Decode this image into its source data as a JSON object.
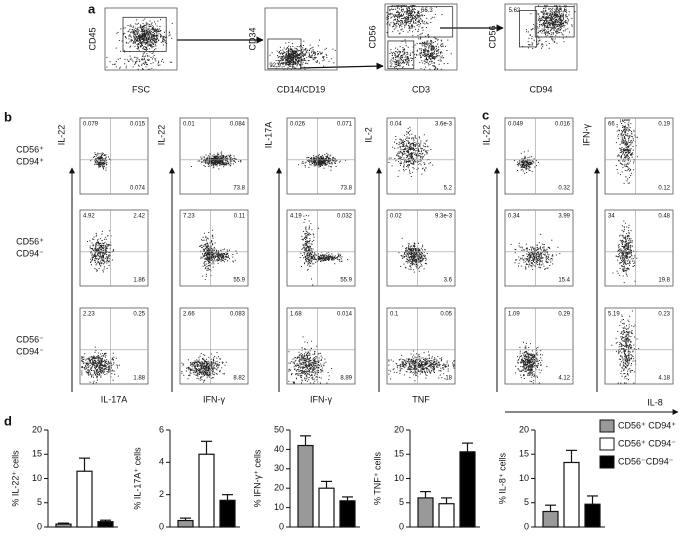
{
  "panel_labels": [
    "a",
    "b",
    "c",
    "d"
  ],
  "panel_a": {
    "plots": [
      {
        "ylabel": "CD45",
        "xlabel": "FSC"
      },
      {
        "ylabel": "CD34",
        "xlabel": "CD14/CD19",
        "gates": [
          "92.9"
        ]
      },
      {
        "ylabel": "CD56",
        "xlabel": "CD3",
        "gates": [
          "66.3",
          "2.54"
        ]
      },
      {
        "ylabel": "CD56",
        "xlabel": "CD94",
        "gates": [
          "5.62",
          "88.6"
        ]
      }
    ]
  },
  "panel_b": {
    "row_labels": [
      [
        "CD56⁺",
        "CD94⁺"
      ],
      [
        "CD56⁺",
        "CD94⁻"
      ],
      [
        "CD56⁻",
        "CD94⁻"
      ]
    ],
    "columns": [
      {
        "ylabel": "IL-22",
        "xlabel": "IL-17A",
        "rows": [
          [
            "0.079",
            "0.015",
            "0.074"
          ],
          [
            "4.92",
            "2.42",
            "1.86"
          ],
          [
            "2.23",
            "0.25",
            "1.88"
          ]
        ]
      },
      {
        "ylabel": "IL-22",
        "xlabel": "IFN-γ",
        "rows": [
          [
            "0.01",
            "0.084",
            "73.8"
          ],
          [
            "7.23",
            "0.11",
            "55.9"
          ],
          [
            "2.66",
            "0.083",
            "8.82"
          ]
        ]
      },
      {
        "ylabel": "IL-17A",
        "xlabel": "IFN-γ",
        "rows": [
          [
            "0.026",
            "0.071",
            "73.8"
          ],
          [
            "4.19",
            "0.032",
            "55.9"
          ],
          [
            "1.68",
            "0.014",
            "8.89"
          ]
        ]
      },
      {
        "ylabel": "IL-2",
        "xlabel": "TNF",
        "rows": [
          [
            "0.04",
            "3.6e-3",
            "5.2"
          ],
          [
            "0.02",
            "9.3e-3",
            "3.6"
          ],
          [
            "0.1",
            "0.05",
            "18"
          ]
        ]
      }
    ]
  },
  "panel_c": {
    "xlabel": "IL-8",
    "columns": [
      {
        "ylabel": "IL-22",
        "rows": [
          [
            "0.049",
            "0.016",
            "0.32"
          ],
          [
            "0.34",
            "3.99",
            "15.4"
          ],
          [
            "1.09",
            "0.29",
            "4.12"
          ]
        ]
      },
      {
        "ylabel": "IFN-γ",
        "rows": [
          [
            "66",
            "0.19",
            "0.12"
          ],
          [
            "34",
            "0.48",
            "19.8"
          ],
          [
            "5.19",
            "0.23",
            "4.18"
          ]
        ]
      }
    ]
  },
  "legend": [
    {
      "name": "CD56⁺ CD94⁺",
      "color": "#999999"
    },
    {
      "name": "CD56⁺ CD94⁻",
      "color": "#ffffff"
    },
    {
      "name": "CD56⁻CD94⁻",
      "color": "#000000"
    }
  ],
  "chart_data": [
    {
      "type": "bar",
      "ylabel": "% IL-22⁺ cells",
      "values": [
        0.6,
        11.5,
        1.1
      ],
      "errors": [
        0.2,
        2.7,
        0.3
      ],
      "ylim": [
        0,
        20
      ],
      "yticks": [
        0,
        5,
        10,
        15,
        20
      ]
    },
    {
      "type": "bar",
      "ylabel": "% IL-17A⁺ cells",
      "values": [
        0.4,
        4.5,
        1.65
      ],
      "errors": [
        0.15,
        0.8,
        0.35
      ],
      "ylim": [
        0,
        6
      ],
      "yticks": [
        0,
        2,
        4,
        6
      ]
    },
    {
      "type": "bar",
      "ylabel": "% IFN-γ⁺ cells",
      "values": [
        42,
        20,
        13.5
      ],
      "errors": [
        5,
        3.5,
        2
      ],
      "ylim": [
        0,
        50
      ],
      "yticks": [
        0,
        10,
        20,
        30,
        40,
        50
      ]
    },
    {
      "type": "bar",
      "ylabel": "% TNF⁺ cells",
      "values": [
        6,
        4.8,
        15.5
      ],
      "errors": [
        1.3,
        1.2,
        1.8
      ],
      "ylim": [
        0,
        20
      ],
      "yticks": [
        0,
        5,
        10,
        15,
        20
      ]
    },
    {
      "type": "bar",
      "ylabel": "% IL-8⁺ cells",
      "values": [
        3.2,
        13.3,
        4.7
      ],
      "errors": [
        1.3,
        2.5,
        1.7
      ],
      "ylim": [
        0,
        20
      ],
      "yticks": [
        0,
        5,
        10,
        15,
        20
      ]
    }
  ]
}
